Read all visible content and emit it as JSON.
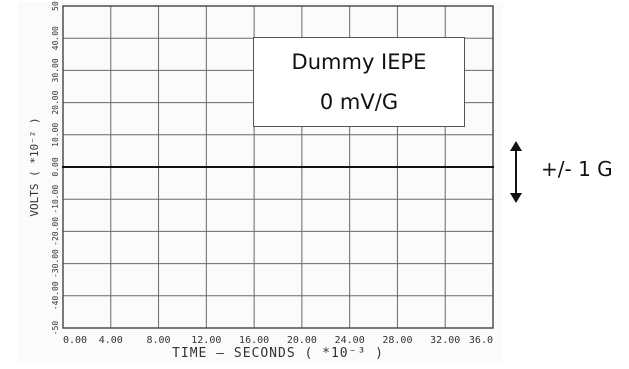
{
  "chart_data": {
    "type": "line",
    "title": "",
    "xlabel": "TIME — SECONDS ( *10⁻³ )",
    "ylabel": "VOLTS ( *10⁻² )",
    "x_ticks": [
      "0.00",
      "4.00",
      "8.00",
      "12.00",
      "16.00",
      "20.00",
      "24.00",
      "28.00",
      "32.00",
      "36.0"
    ],
    "y_ticks": [
      "-50",
      "-40.00",
      "-30.00",
      "-20.00",
      "-10.00",
      "0.00",
      "10.00",
      "20.00",
      "30.00",
      "40.00",
      "50"
    ],
    "xlim": [
      0,
      36
    ],
    "ylim": [
      -50,
      50
    ],
    "grid": true,
    "series": [
      {
        "x": [
          0,
          4,
          8,
          12,
          16,
          20,
          24,
          28,
          32,
          36
        ],
        "values": [
          0,
          0,
          0,
          0,
          0,
          0,
          0,
          0,
          0,
          0
        ]
      }
    ],
    "annotations": {
      "callout_line1": "Dummy IEPE",
      "callout_line2": "0 mV/G",
      "range_label": "+/- 1 G"
    }
  }
}
